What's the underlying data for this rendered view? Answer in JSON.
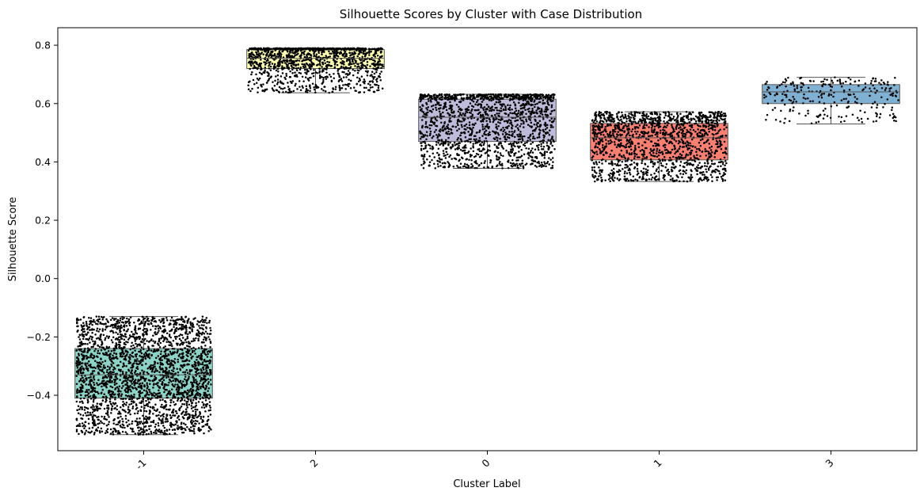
{
  "chart_data": {
    "type": "box",
    "title": "Silhouette Scores by Cluster with Case Distribution",
    "xlabel": "Cluster Label",
    "ylabel": "Silhouette Score",
    "categories": [
      "-1",
      "2",
      "0",
      "1",
      "3"
    ],
    "ylim": [
      -0.59,
      0.86
    ],
    "yticks": [
      -0.4,
      -0.2,
      0.0,
      0.2,
      0.4,
      0.6,
      0.8
    ],
    "ytick_labels": [
      "−0.4",
      "−0.2",
      "0.0",
      "0.2",
      "0.4",
      "0.6",
      "0.8"
    ],
    "xtick_rotation": 45,
    "grid": false,
    "boxes": [
      {
        "category": "-1",
        "color": "#8dd3c7",
        "whisker_low": -0.535,
        "q1": -0.41,
        "median": -0.33,
        "q3": -0.24,
        "whisker_high": -0.13,
        "point_count": 2600
      },
      {
        "category": "2",
        "color": "#ffffb3",
        "whisker_low": 0.637,
        "q1": 0.72,
        "median": 0.755,
        "q3": 0.785,
        "whisker_high": 0.79,
        "point_count": 1300
      },
      {
        "category": "0",
        "color": "#bebada",
        "whisker_low": 0.378,
        "q1": 0.47,
        "median": 0.553,
        "q3": 0.615,
        "whisker_high": 0.632,
        "point_count": 1600
      },
      {
        "category": "1",
        "color": "#fb8072",
        "whisker_low": 0.333,
        "q1": 0.407,
        "median": 0.483,
        "q3": 0.532,
        "whisker_high": 0.572,
        "point_count": 1500
      },
      {
        "category": "3",
        "color": "#80b1d3",
        "whisker_low": 0.53,
        "q1": 0.6,
        "median": 0.64,
        "q3": 0.665,
        "whisker_high": 0.69,
        "point_count": 260
      }
    ],
    "box_edge_color": "#555555",
    "point_color": "#000000"
  }
}
